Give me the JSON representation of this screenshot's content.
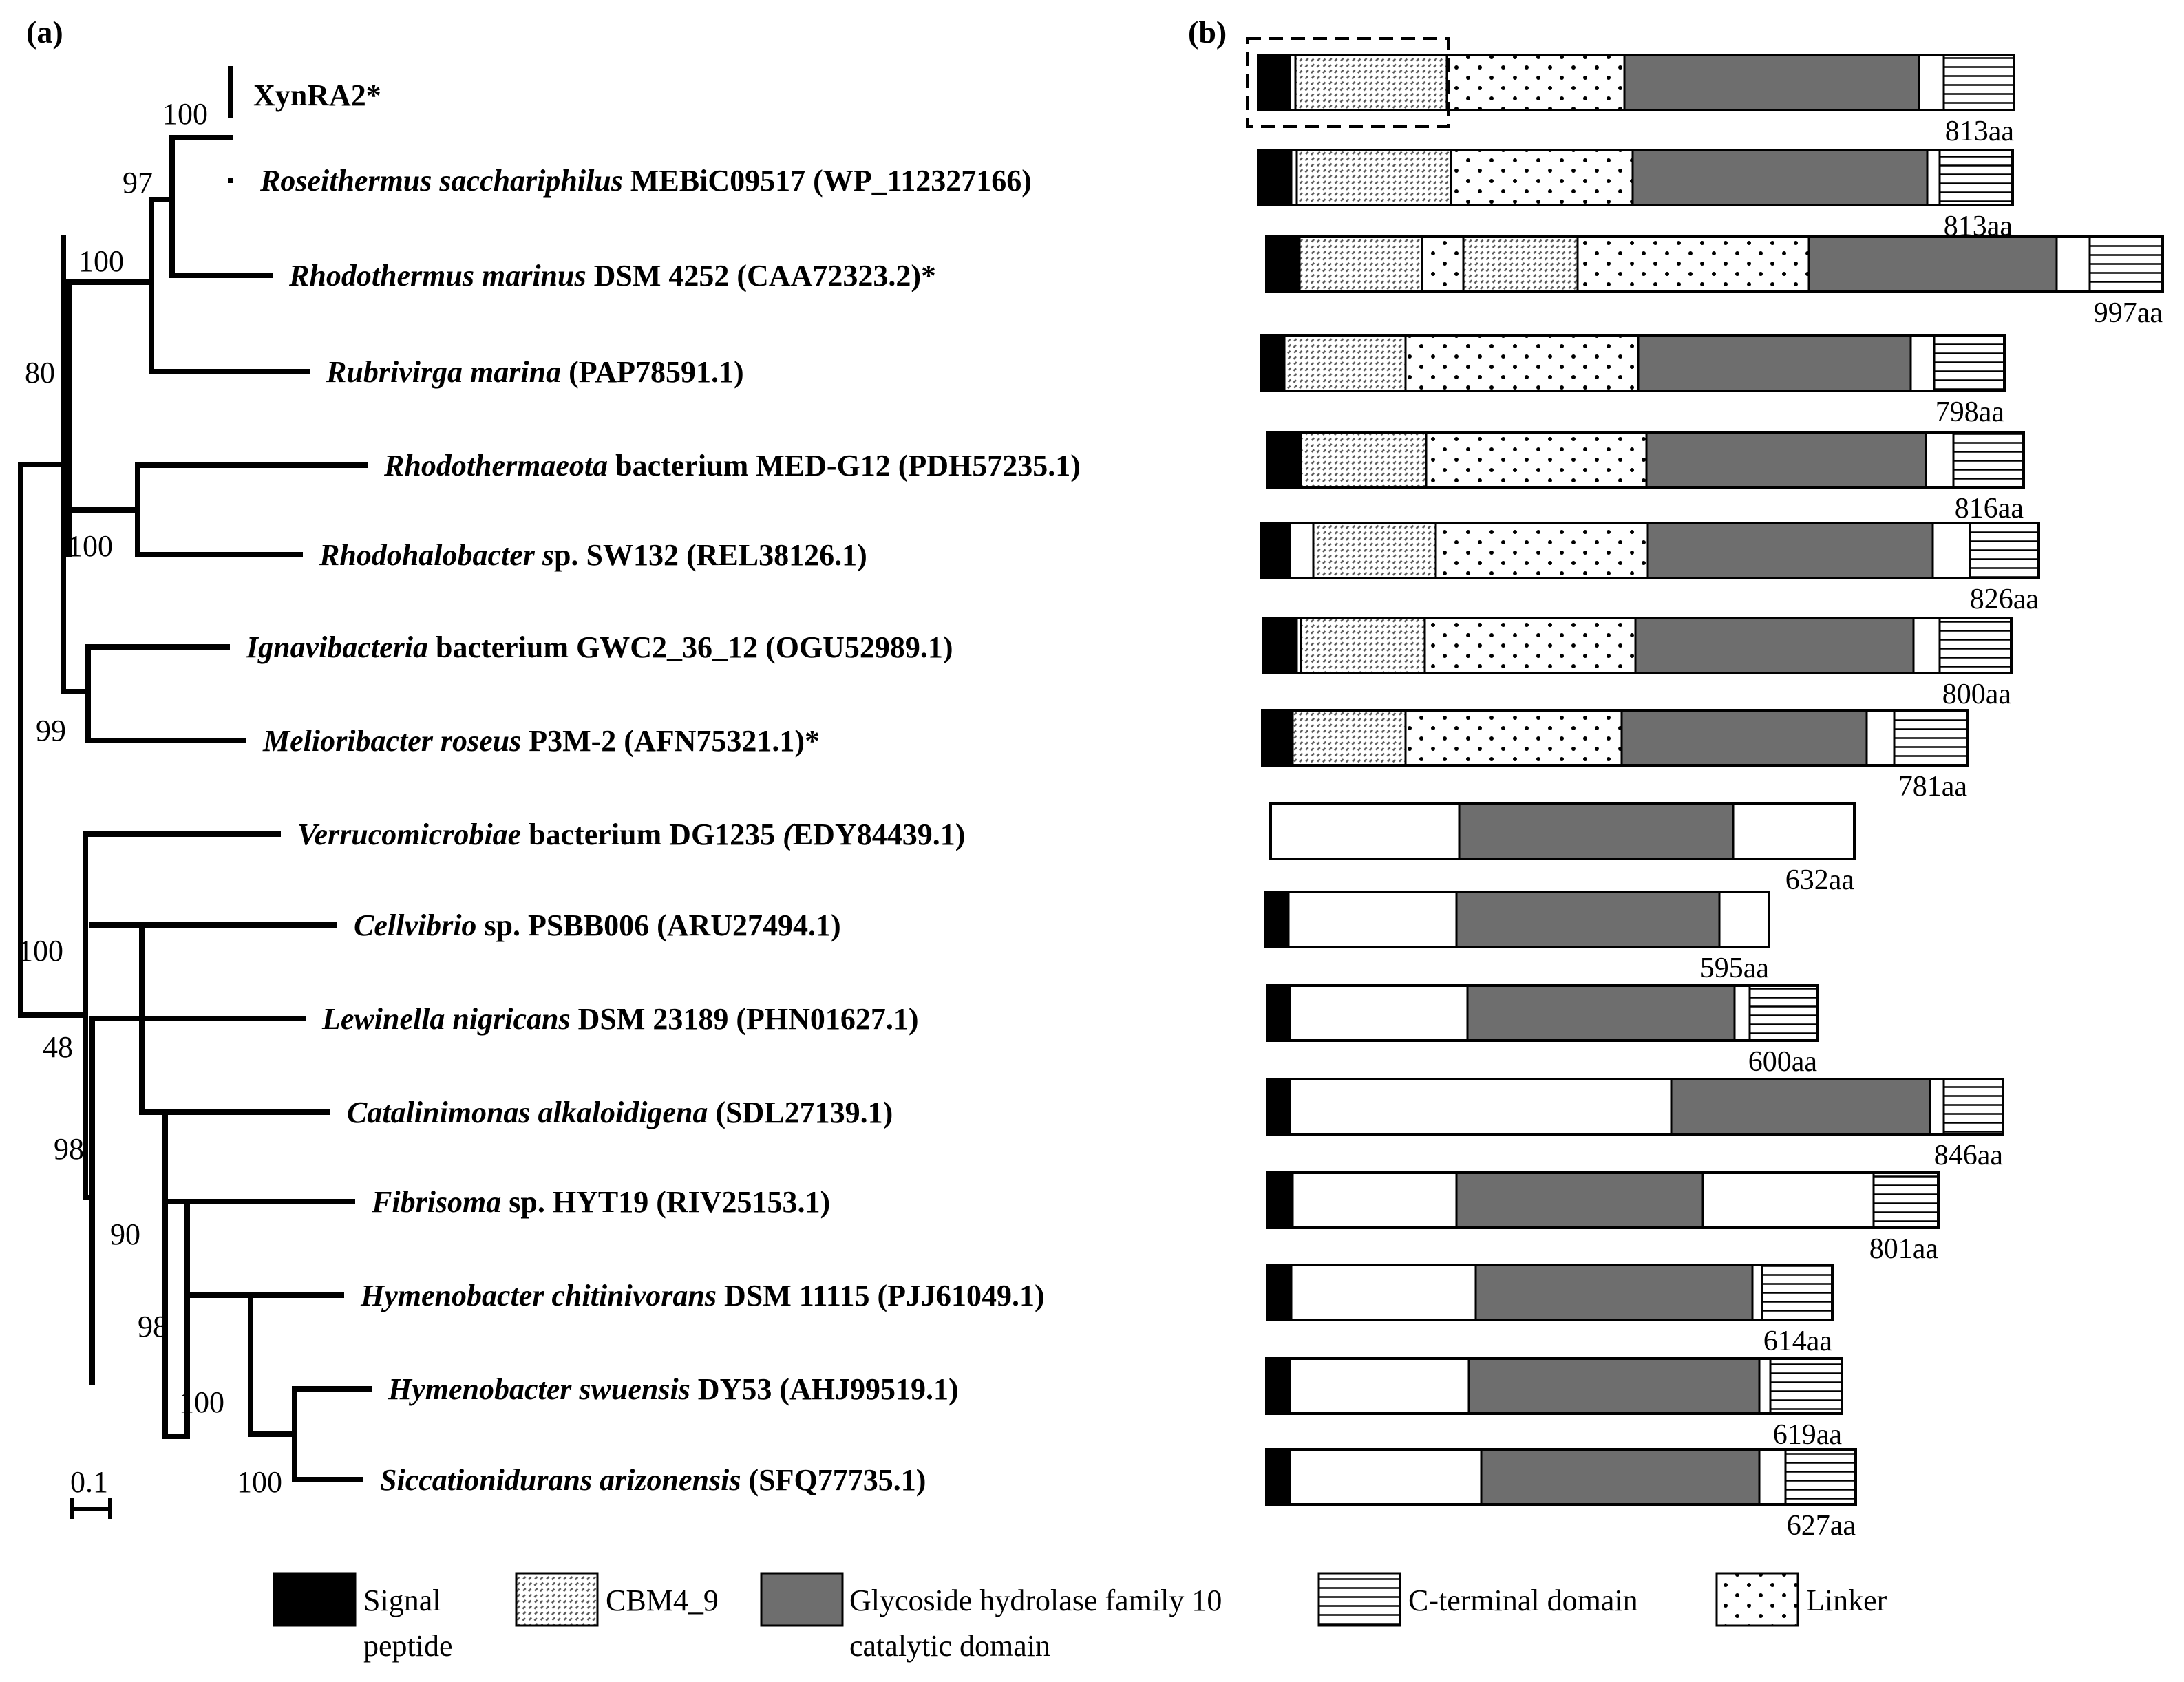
{
  "panels": {
    "a": "(a)",
    "b": "(b)"
  },
  "scale_bar": {
    "label": "0.1"
  },
  "colors": {
    "signal": "#000000",
    "catalytic": "#6e6e6e",
    "plain": "#ffffff",
    "outline": "#000000"
  },
  "taxa": [
    {
      "parts": [
        {
          "t": "XynRA2*",
          "i": false
        }
      ],
      "length": "813aa"
    },
    {
      "parts": [
        {
          "t": "Roseithermus saccharіphilus",
          "i": true
        },
        {
          "t": " MEBiC09517 (WP_112327166)",
          "i": false
        }
      ],
      "length": "813aa"
    },
    {
      "parts": [
        {
          "t": "Rhodothermus marinus",
          "i": true
        },
        {
          "t": " DSM 4252 (CAA72323.2)*",
          "i": false
        }
      ],
      "length": "997aa"
    },
    {
      "parts": [
        {
          "t": "Rubrivirga marina",
          "i": true
        },
        {
          "t": " (PAP78591.1)",
          "i": false
        }
      ],
      "length": "798aa"
    },
    {
      "parts": [
        {
          "t": "Rhodothermaeota",
          "i": true
        },
        {
          "t": " bacterium MED-G12 (PDH57235.1)",
          "i": false
        }
      ],
      "length": "816aa"
    },
    {
      "parts": [
        {
          "t": "Rhodohalobacter s",
          "i": true
        },
        {
          "t": "p. SW132 (REL38126.1)",
          "i": false
        }
      ],
      "length": "826aa"
    },
    {
      "parts": [
        {
          "t": "Ignavibacteria",
          "i": true
        },
        {
          "t": " bacterium GWC2_36_12 (OGU52989.1)",
          "i": false
        }
      ],
      "length": "800aa"
    },
    {
      "parts": [
        {
          "t": "Melioribacter roseus",
          "i": true
        },
        {
          "t": " P3M-2 (AFN75321.1)*",
          "i": false
        }
      ],
      "length": "781aa"
    },
    {
      "parts": [
        {
          "t": "Verrucomicrobiae",
          "i": true
        },
        {
          "t": " bacterium DG1235 ",
          "i": false
        },
        {
          "t": "(",
          "i": true
        },
        {
          "t": "EDY84439.1)",
          "i": false
        }
      ],
      "length": "632aa"
    },
    {
      "parts": [
        {
          "t": "Cellvibrio",
          "i": true
        },
        {
          "t": " sp. PSBB006 (ARU27494.1)",
          "i": false
        }
      ],
      "length": "595aa"
    },
    {
      "parts": [
        {
          "t": "Lewinella nigricans",
          "i": true
        },
        {
          "t": " DSM 23189 (PHN01627.1)",
          "i": false
        }
      ],
      "length": "600aa"
    },
    {
      "parts": [
        {
          "t": "Catalinimonas alkaloidigena",
          "i": true
        },
        {
          "t": " (SDL27139.1)",
          "i": false
        }
      ],
      "length": "846aa"
    },
    {
      "parts": [
        {
          "t": "Fibrisoma",
          "i": true
        },
        {
          "t": " sp. HYT19 (RIV25153.1)",
          "i": false
        }
      ],
      "length": "801aa"
    },
    {
      "parts": [
        {
          "t": "Hymenobacter chitinivorans",
          "i": true
        },
        {
          "t": " DSM 11115 (PJJ61049.1)",
          "i": false
        }
      ],
      "length": "614aa"
    },
    {
      "parts": [
        {
          "t": "Hymenobacter swuensis",
          "i": true
        },
        {
          "t": " DY53 (AHJ99519.1)",
          "i": false
        }
      ],
      "length": "619aa"
    },
    {
      "parts": [
        {
          "t": "Siccationidurans arizonensis",
          "i": true
        },
        {
          "t": " (SFQ77735.1)",
          "i": false
        }
      ],
      "length": "627aa"
    }
  ],
  "bootstrap_values": [
    "100",
    "97",
    "100",
    "80",
    "100",
    "99",
    "100",
    "48",
    "98",
    "90",
    "98",
    "100",
    "100"
  ],
  "legend": [
    {
      "key": "signal",
      "lines": [
        "Signal",
        "peptide"
      ]
    },
    {
      "key": "cbm",
      "lines": [
        "CBM4_9"
      ]
    },
    {
      "key": "catalytic",
      "lines": [
        "Glycoside hydrolase family 10",
        "catalytic domain"
      ]
    },
    {
      "key": "cterm",
      "lines": [
        "C-terminal domain"
      ]
    },
    {
      "key": "linker",
      "lines": [
        "Linker"
      ]
    }
  ]
}
